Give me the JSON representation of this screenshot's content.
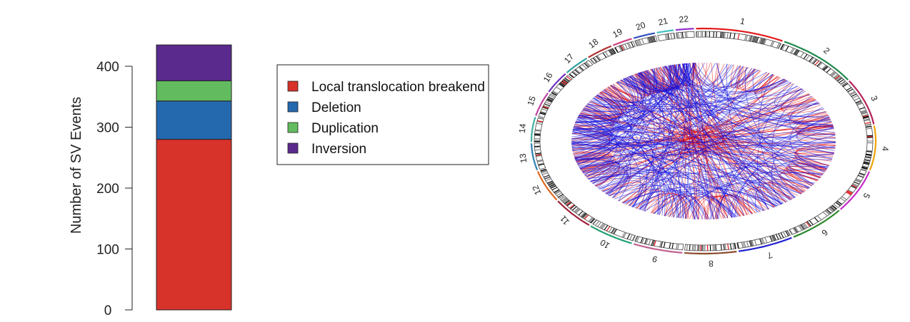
{
  "chart_data": [
    {
      "type": "bar",
      "stacked": true,
      "categories": [
        ""
      ],
      "series": [
        {
          "name": "Local translocation breakend",
          "values": [
            280
          ],
          "color": "#d7332a"
        },
        {
          "name": "Deletion",
          "values": [
            63
          ],
          "color": "#2468ae"
        },
        {
          "name": "Duplication",
          "values": [
            33
          ],
          "color": "#62bc5f"
        },
        {
          "name": "Inversion",
          "values": [
            59
          ],
          "color": "#5a2a8d"
        }
      ],
      "xlabel": "",
      "ylabel": "Number of SV Events",
      "ylim": [
        0,
        400
      ],
      "yticks": [
        0,
        100,
        200,
        300,
        400
      ],
      "grid": false,
      "legend": {
        "placement": "right",
        "entries": [
          "Local translocation breakend",
          "Deletion",
          "Duplication",
          "Inversion"
        ]
      }
    },
    {
      "type": "circos",
      "chromosomes": [
        "1",
        "2",
        "3",
        "4",
        "5",
        "6",
        "7",
        "8",
        "9",
        "10",
        "11",
        "12",
        "13",
        "14",
        "15",
        "16",
        "17",
        "18",
        "19",
        "20",
        "21",
        "22"
      ],
      "chromosome_colors": [
        "#e41a1c",
        "#1f8a4c",
        "#b5215a",
        "#f0a30a",
        "#c82ac8",
        "#2c8a2c",
        "#2020d0",
        "#8b4a2b",
        "#c06090",
        "#20a070",
        "#a0203a",
        "#e06a20",
        "#2f7fb0",
        "#3fb0a0",
        "#c040a0",
        "#7030c0",
        "#30a0a0",
        "#b03030",
        "#d04080",
        "#3050c0",
        "#40c0c0",
        "#9030d0"
      ],
      "link_colors": {
        "translocation": "#e00000",
        "intra": "#1010e0"
      }
    }
  ]
}
